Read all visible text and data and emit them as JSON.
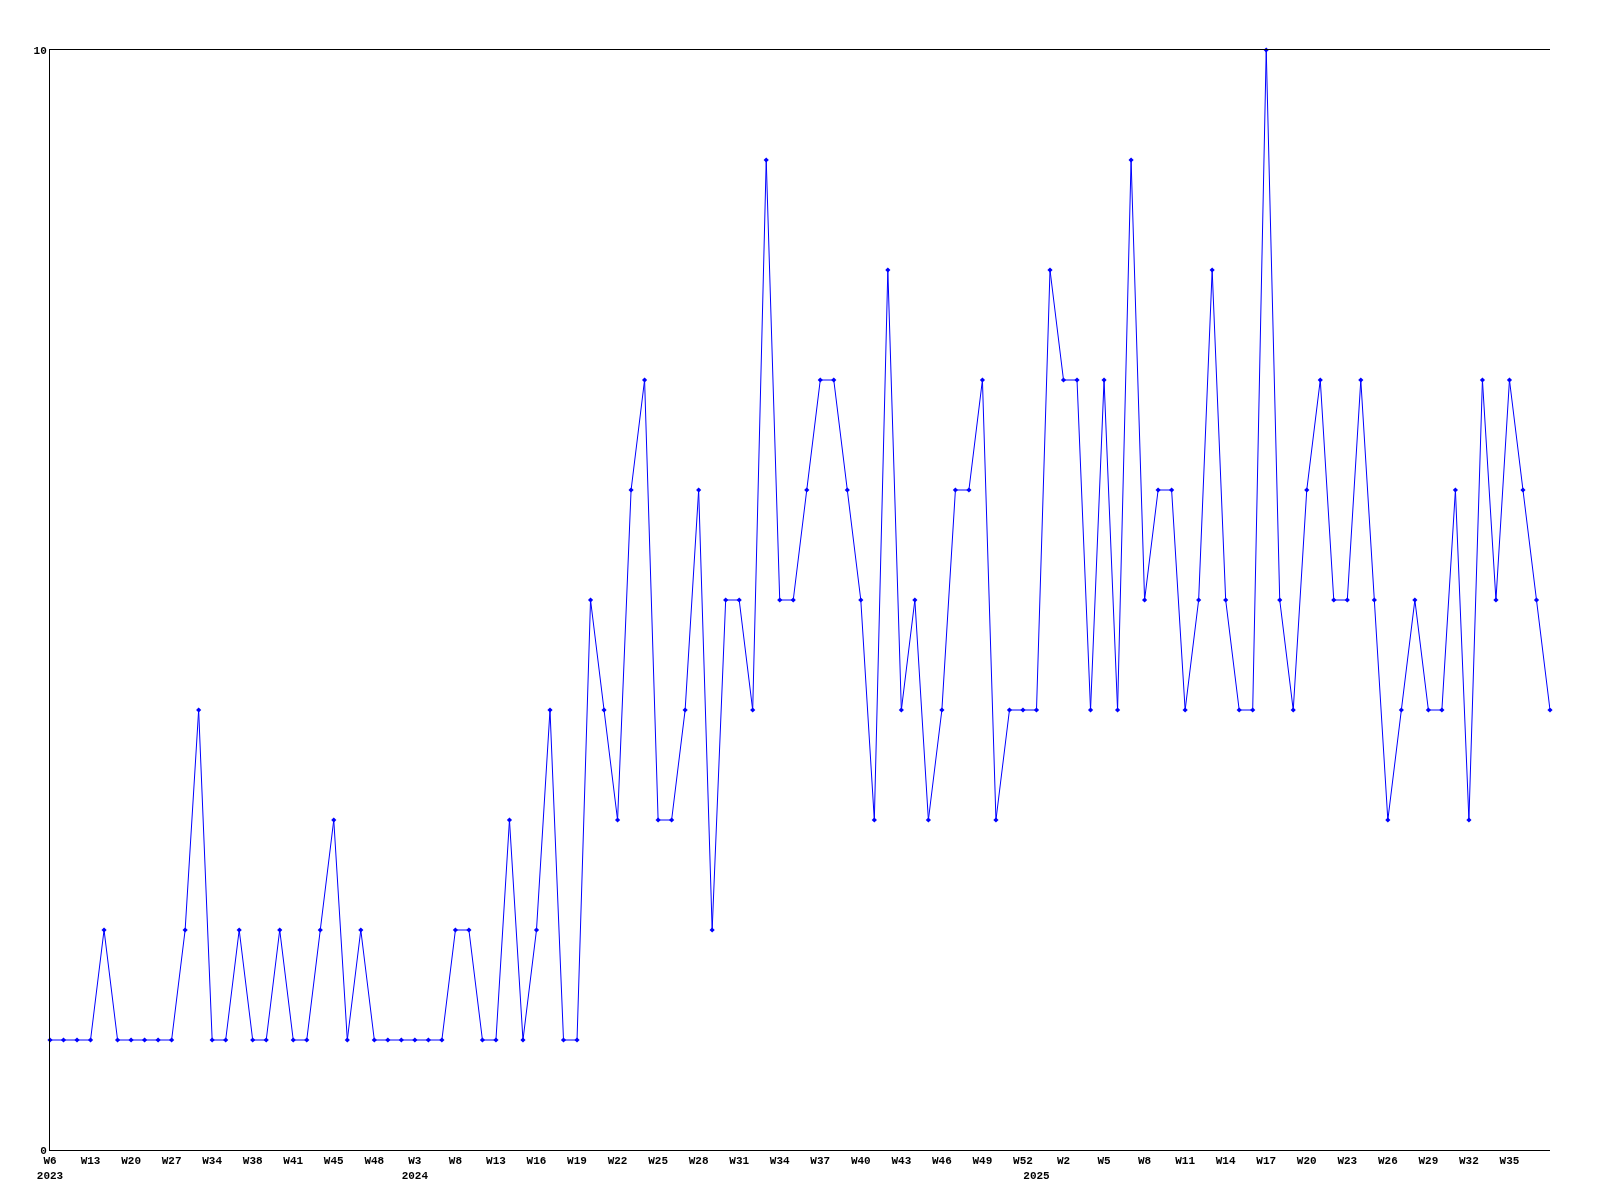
{
  "chart_data": {
    "type": "line",
    "categories": [
      "W6\n2023",
      null,
      null,
      "W13",
      null,
      null,
      "W20",
      null,
      null,
      "W27",
      null,
      null,
      "W34",
      null,
      null,
      "W38",
      null,
      null,
      "W41",
      null,
      null,
      "W45",
      null,
      null,
      "W48",
      null,
      null,
      "W3\n2024",
      null,
      null,
      "W8",
      null,
      null,
      "W13",
      null,
      null,
      "W16",
      null,
      null,
      "W19",
      null,
      null,
      "W22",
      null,
      null,
      "W25",
      null,
      null,
      "W28",
      null,
      null,
      "W31",
      null,
      null,
      "W34",
      null,
      null,
      "W37",
      null,
      null,
      "W40",
      null,
      null,
      "W43",
      null,
      null,
      "W46",
      null,
      null,
      "W49",
      null,
      null,
      "W52",
      "\n2025",
      null,
      "W2",
      null,
      null,
      "W5",
      null,
      null,
      "W8",
      null,
      null,
      "W11",
      null,
      null,
      "W14",
      null,
      null,
      "W17",
      null,
      null,
      "W20",
      null,
      null,
      "W23",
      null,
      null,
      "W26",
      null,
      null,
      "W29",
      null,
      null,
      "W32",
      null,
      null,
      "W35",
      null,
      null,
      null
    ],
    "series": [
      {
        "color": "#0000ff",
        "values": [
          1,
          1,
          1,
          1,
          2,
          1,
          1,
          1,
          1,
          1,
          2,
          4,
          1,
          1,
          2,
          1,
          1,
          2,
          1,
          1,
          2,
          3,
          1,
          2,
          1,
          1,
          1,
          1,
          1,
          1,
          2,
          2,
          1,
          1,
          3,
          1,
          2,
          4,
          1,
          1,
          5,
          4,
          3,
          6,
          7,
          3,
          3,
          4,
          6,
          2,
          5,
          5,
          4,
          9,
          5,
          5,
          6,
          7,
          7,
          6,
          5,
          3,
          8,
          4,
          5,
          3,
          4,
          6,
          6,
          7,
          3,
          4,
          4,
          4,
          8,
          7,
          7,
          4,
          7,
          4,
          9,
          5,
          6,
          6,
          4,
          5,
          8,
          5,
          4,
          4,
          10,
          5,
          4,
          6,
          7,
          5,
          5,
          7,
          5,
          3,
          4,
          5,
          4,
          4,
          6,
          3,
          7,
          5,
          7,
          6,
          5,
          4
        ]
      }
    ],
    "ylim": [
      0,
      10
    ],
    "yticks": [
      0,
      10
    ],
    "grid": false,
    "marker": "diamond",
    "line_style": "solid"
  }
}
